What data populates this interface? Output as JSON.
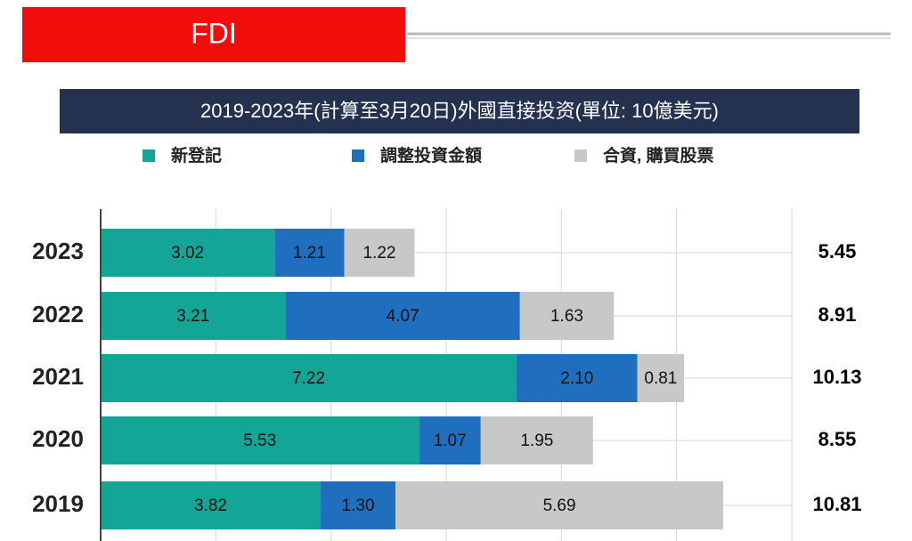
{
  "header": {
    "title": "FDI"
  },
  "chart_data": {
    "type": "bar",
    "orientation": "horizontal",
    "stacked": true,
    "title": "2019-2023年(計算至3月20日)外國直接投资(單位: 10億美元)",
    "categories": [
      "2023",
      "2022",
      "2021",
      "2020",
      "2019"
    ],
    "series": [
      {
        "name": "新登記",
        "color": "#13a595",
        "values": [
          3.02,
          3.21,
          7.22,
          5.53,
          3.82
        ],
        "value_labels": [
          "3.02",
          "3.21",
          "7.22",
          "5.53",
          "3.82"
        ]
      },
      {
        "name": "調整投資金額",
        "color": "#1f6fbe",
        "values": [
          1.21,
          4.07,
          2.1,
          1.07,
          1.3
        ],
        "value_labels": [
          "1.21",
          "4.07",
          "2.10",
          "1.07",
          "1.30"
        ]
      },
      {
        "name": "合資, 購買股票",
        "color": "#c8c8c9",
        "values": [
          1.22,
          1.63,
          0.81,
          1.95,
          5.69
        ],
        "value_labels": [
          "1.22",
          "1.63",
          "0.81",
          "1.95",
          "5.69"
        ]
      }
    ],
    "totals": [
      5.45,
      8.91,
      10.13,
      8.55,
      10.81
    ],
    "xlim": [
      0,
      12
    ],
    "xticks": [
      0,
      2,
      4,
      6,
      8,
      10,
      12
    ],
    "tick_labels": false,
    "grid": true
  }
}
